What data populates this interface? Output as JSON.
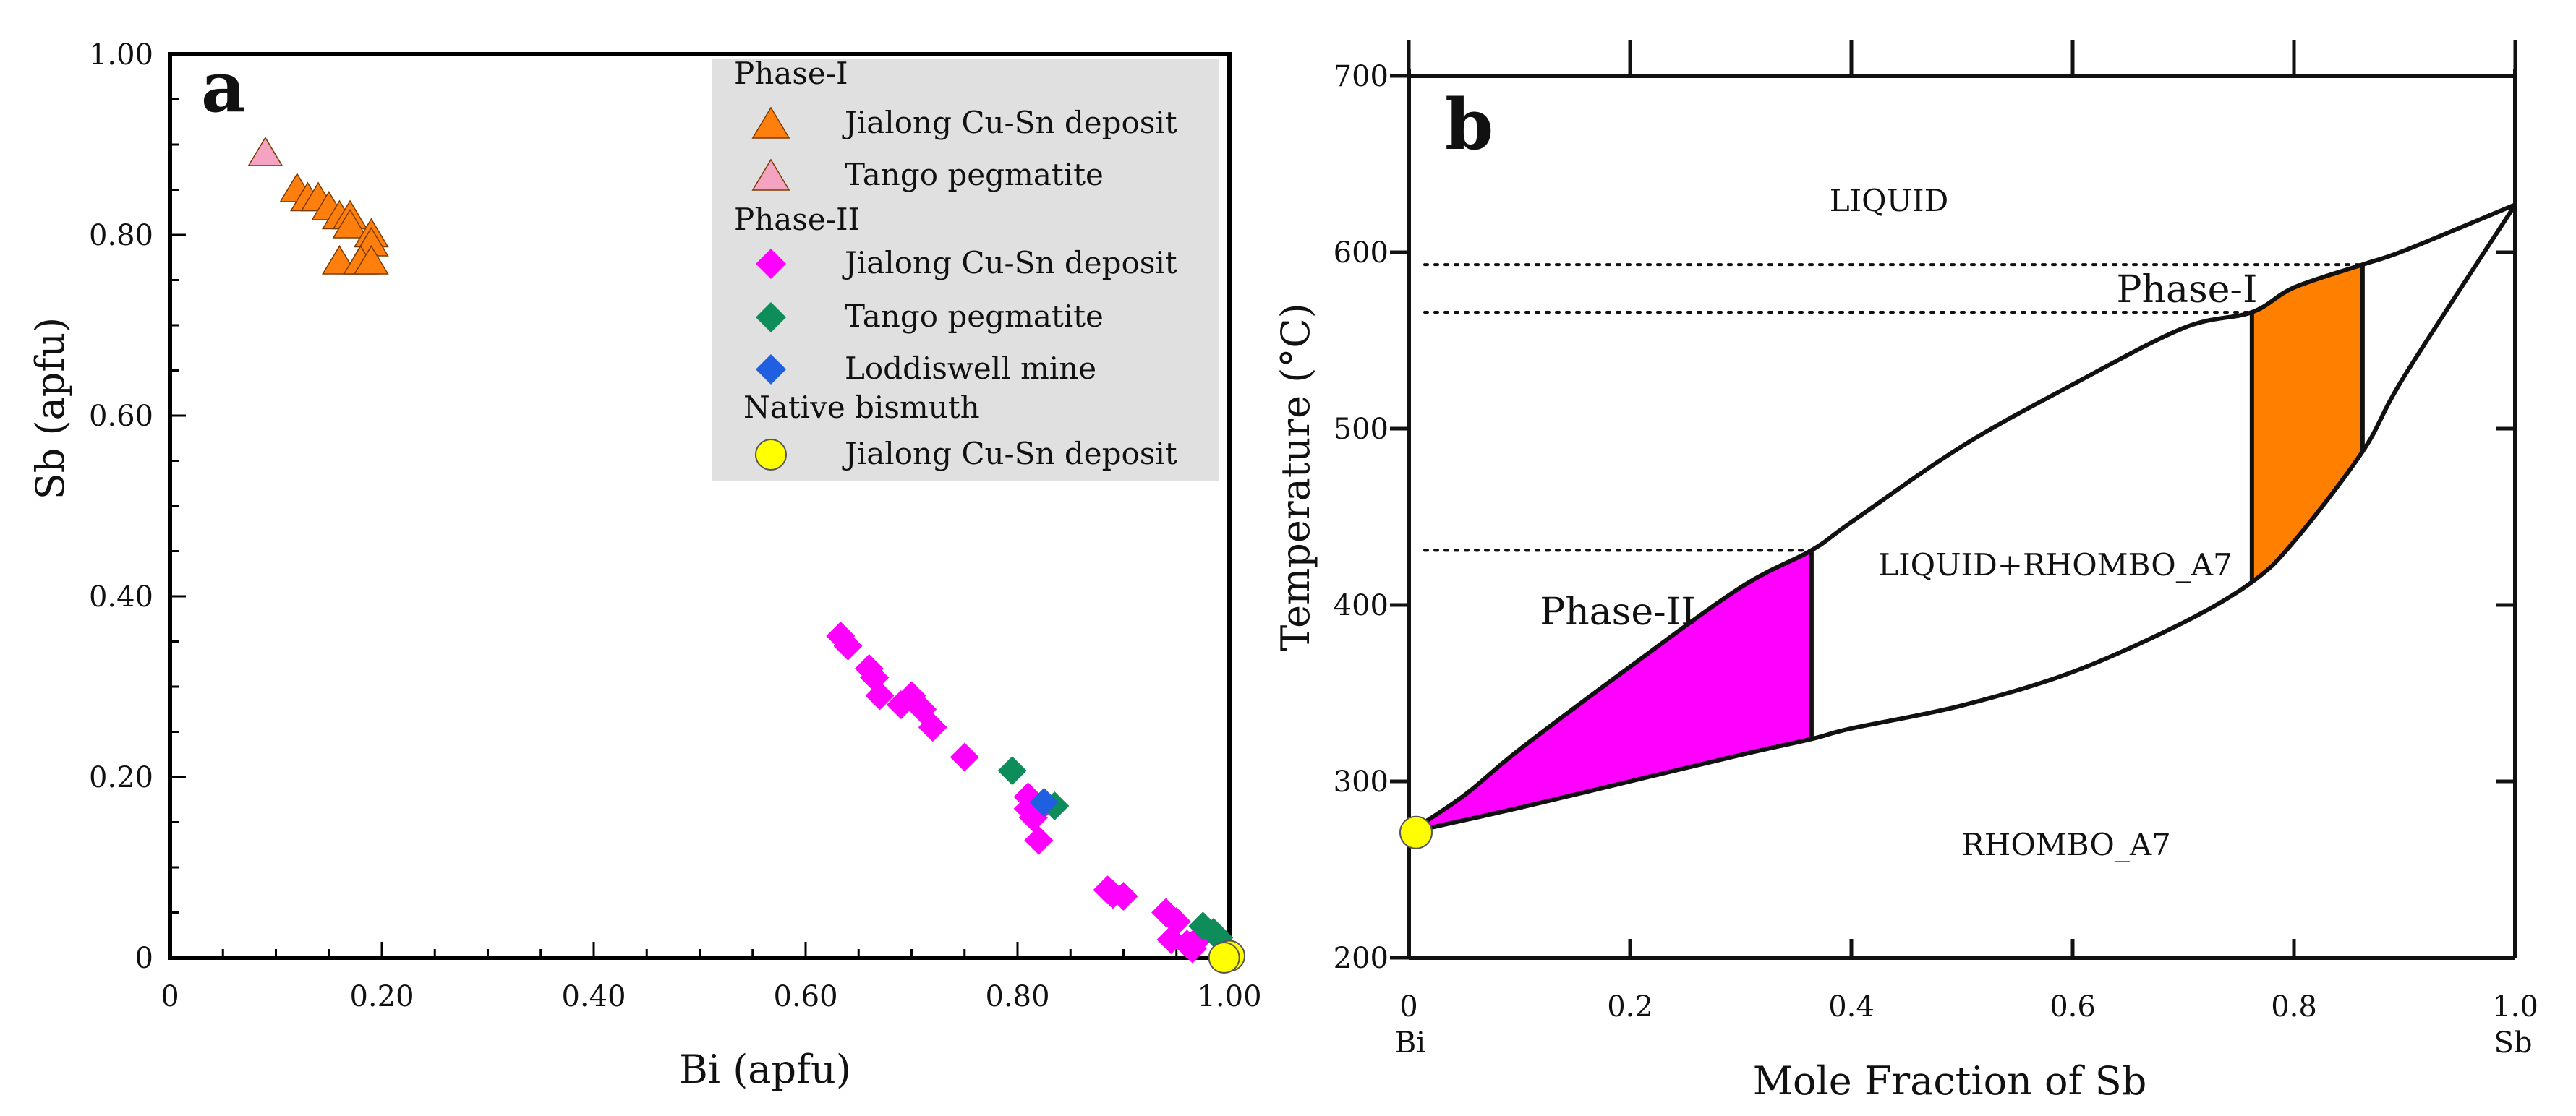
{
  "chart_data": [
    {
      "type": "scatter",
      "panel_label": "a",
      "xlabel": "Bi (apfu)",
      "ylabel": "Sb (apfu)",
      "xlim": [
        0,
        1.0
      ],
      "ylim": [
        0,
        1.0
      ],
      "x_tick_labels": [
        "0",
        "0.20",
        "0.40",
        "0.60",
        "0.80",
        "1.00"
      ],
      "y_tick_labels": [
        "0",
        "0.20",
        "0.40",
        "0.60",
        "0.80",
        "1.00"
      ],
      "legend": {
        "position": "top-right",
        "groups": [
          {
            "heading": "Phase-I",
            "entries": [
              {
                "series": "p1-jialong",
                "label": "Jialong Cu-Sn deposit"
              },
              {
                "series": "p1-tango",
                "label": "Tango pegmatite"
              }
            ]
          },
          {
            "heading": "Phase-II",
            "entries": [
              {
                "series": "p2-jialong",
                "label": "Jialong Cu-Sn deposit"
              },
              {
                "series": "p2-tango",
                "label": "Tango pegmatite"
              },
              {
                "series": "p2-loddiswell",
                "label": "Loddiswell mine"
              }
            ]
          },
          {
            "heading": "Native bismuth",
            "entries": [
              {
                "series": "native-jialong",
                "label": "Jialong Cu-Sn deposit"
              }
            ]
          }
        ]
      },
      "series": [
        {
          "id": "p1-jialong",
          "name": "Phase-I Jialong Cu-Sn deposit",
          "marker": "triangle",
          "color": "#FF7F0E",
          "points": [
            [
              0.12,
              0.85
            ],
            [
              0.13,
              0.84
            ],
            [
              0.14,
              0.84
            ],
            [
              0.15,
              0.83
            ],
            [
              0.16,
              0.82
            ],
            [
              0.17,
              0.82
            ],
            [
              0.17,
              0.81
            ],
            [
              0.19,
              0.8
            ],
            [
              0.19,
              0.79
            ],
            [
              0.16,
              0.77
            ],
            [
              0.18,
              0.77
            ],
            [
              0.19,
              0.77
            ]
          ]
        },
        {
          "id": "p1-tango",
          "name": "Phase-I Tango pegmatite",
          "marker": "triangle",
          "color": "#F4A3C0",
          "points": [
            [
              0.09,
              0.89
            ]
          ]
        },
        {
          "id": "p2-jialong",
          "name": "Phase-II Jialong Cu-Sn deposit",
          "marker": "diamond",
          "color": "#FF00FF",
          "points": [
            [
              0.633,
              0.356
            ],
            [
              0.64,
              0.345
            ],
            [
              0.66,
              0.32
            ],
            [
              0.665,
              0.31
            ],
            [
              0.67,
              0.29
            ],
            [
              0.69,
              0.28
            ],
            [
              0.7,
              0.29
            ],
            [
              0.71,
              0.275
            ],
            [
              0.72,
              0.255
            ],
            [
              0.75,
              0.222
            ],
            [
              0.81,
              0.178
            ],
            [
              0.81,
              0.165
            ],
            [
              0.815,
              0.155
            ],
            [
              0.82,
              0.13
            ],
            [
              0.825,
              0.17
            ],
            [
              0.885,
              0.075
            ],
            [
              0.89,
              0.07
            ],
            [
              0.9,
              0.068
            ],
            [
              0.94,
              0.05
            ],
            [
              0.95,
              0.04
            ],
            [
              0.945,
              0.02
            ],
            [
              0.96,
              0.015
            ],
            [
              0.97,
              0.02
            ],
            [
              0.965,
              0.01
            ]
          ]
        },
        {
          "id": "p2-tango",
          "name": "Phase-II Tango pegmatite",
          "marker": "diamond",
          "color": "#0E8C5A",
          "points": [
            [
              0.795,
              0.207
            ],
            [
              0.835,
              0.168
            ],
            [
              0.975,
              0.035
            ],
            [
              0.985,
              0.028
            ],
            [
              0.99,
              0.022
            ]
          ]
        },
        {
          "id": "p2-loddiswell",
          "name": "Phase-II Loddiswell mine",
          "marker": "diamond",
          "color": "#1F5FE0",
          "points": [
            [
              0.825,
              0.172
            ]
          ]
        },
        {
          "id": "native-jialong",
          "name": "Native bismuth Jialong Cu-Sn deposit",
          "marker": "circle",
          "color": "#FFFF00",
          "points": [
            [
              1.0,
              0.002
            ],
            [
              0.995,
              0.0
            ]
          ]
        }
      ]
    },
    {
      "type": "phase-diagram",
      "panel_label": "b",
      "xlabel": "Mole Fraction of Sb",
      "ylabel": "Temperature (°C)",
      "xlim": [
        0,
        1.0
      ],
      "ylim": [
        200,
        700
      ],
      "x_tick_labels": [
        "0",
        "0.2",
        "0.4",
        "0.6",
        "0.8",
        "1.0"
      ],
      "y_tick_labels": [
        "200",
        "300",
        "400",
        "500",
        "600",
        "700"
      ],
      "x_end_labels": {
        "left": "Bi",
        "right": "Sb"
      },
      "region_labels": {
        "liquid": "LIQUID",
        "two_phase": "LIQUID+RHOMBO_A7",
        "solid": "RHOMBO_A7"
      },
      "phase_labels": {
        "phase_i": "Phase-I",
        "phase_ii": "Phase-II"
      },
      "liquidus": [
        [
          0,
          271
        ],
        [
          0.05,
          292
        ],
        [
          0.1,
          318
        ],
        [
          0.2,
          365
        ],
        [
          0.3,
          410
        ],
        [
          0.364,
          431
        ],
        [
          0.4,
          447
        ],
        [
          0.5,
          490
        ],
        [
          0.6,
          525
        ],
        [
          0.7,
          557
        ],
        [
          0.762,
          566
        ],
        [
          0.8,
          580
        ],
        [
          0.862,
          593
        ],
        [
          0.9,
          601
        ],
        [
          1.0,
          627
        ]
      ],
      "solidus": [
        [
          0,
          271
        ],
        [
          0.1,
          285
        ],
        [
          0.2,
          300
        ],
        [
          0.3,
          315
        ],
        [
          0.364,
          324
        ],
        [
          0.4,
          330
        ],
        [
          0.5,
          343
        ],
        [
          0.6,
          362
        ],
        [
          0.7,
          390
        ],
        [
          0.762,
          413
        ],
        [
          0.8,
          436
        ],
        [
          0.862,
          487
        ],
        [
          0.9,
          530
        ],
        [
          1.0,
          627
        ]
      ],
      "dotted_isotherms": [
        {
          "temperature": 593,
          "x_to": 0.862
        },
        {
          "temperature": 566,
          "x_to": 0.762
        },
        {
          "temperature": 431,
          "x_to": 0.364
        }
      ],
      "phase_i_range": {
        "x_from": 0.762,
        "x_to": 0.862,
        "color": "#FF7F00"
      },
      "phase_ii_range": {
        "x_from": 0.0,
        "x_to": 0.364,
        "color": "#FF00FF"
      },
      "native_bismuth_point": {
        "x": 0.0,
        "temperature": 271,
        "color": "#FFFF00"
      }
    }
  ]
}
